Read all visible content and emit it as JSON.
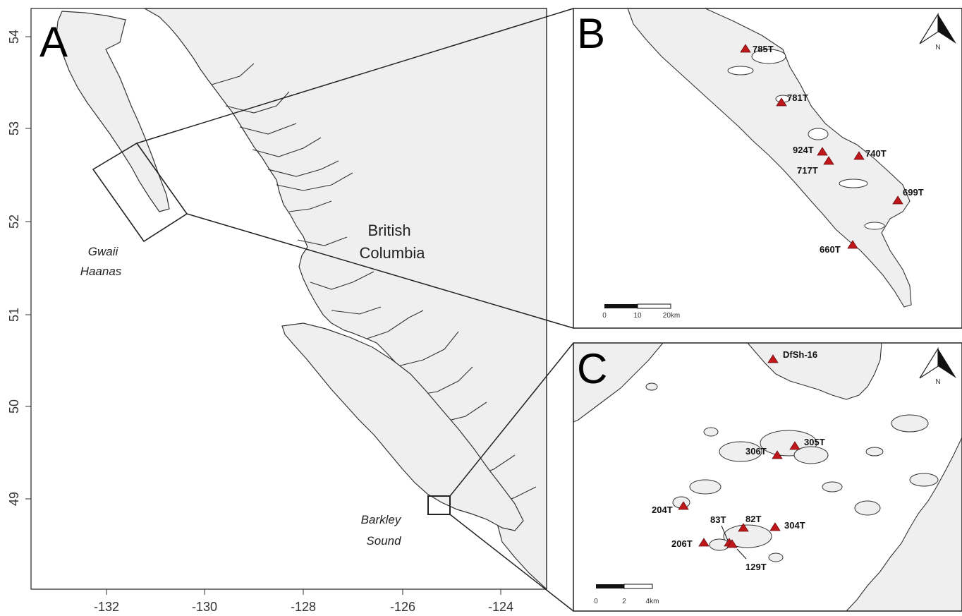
{
  "panels": {
    "a": "A",
    "b": "B",
    "c": "C"
  },
  "axes": {
    "y_ticks": [
      "54",
      "53",
      "52",
      "51",
      "50",
      "49"
    ],
    "x_ticks": [
      "-132",
      "-130",
      "-128",
      "-126",
      "-124"
    ]
  },
  "places": {
    "bc_line1": "British",
    "bc_line2": "Columbia",
    "gwaii_line1": "Gwaii",
    "gwaii_line2": "Haanas",
    "barkley_line1": "Barkley",
    "barkley_line2": "Sound"
  },
  "sites_b": [
    "785T",
    "781T",
    "924T",
    "740T",
    "717T",
    "699T",
    "660T"
  ],
  "sites_c": [
    "DfSh-16",
    "306T",
    "305T",
    "204T",
    "83T",
    "82T",
    "304T",
    "206T",
    "129T"
  ],
  "scale_b": {
    "t0": "0",
    "t1": "10",
    "t2": "20km"
  },
  "scale_c": {
    "t0": "0",
    "t1": "2",
    "t2": "4km"
  },
  "north_label": "N",
  "colors": {
    "land": "#efefef",
    "coast": "#333333",
    "marker": "#c0171b",
    "frame": "#222222"
  }
}
